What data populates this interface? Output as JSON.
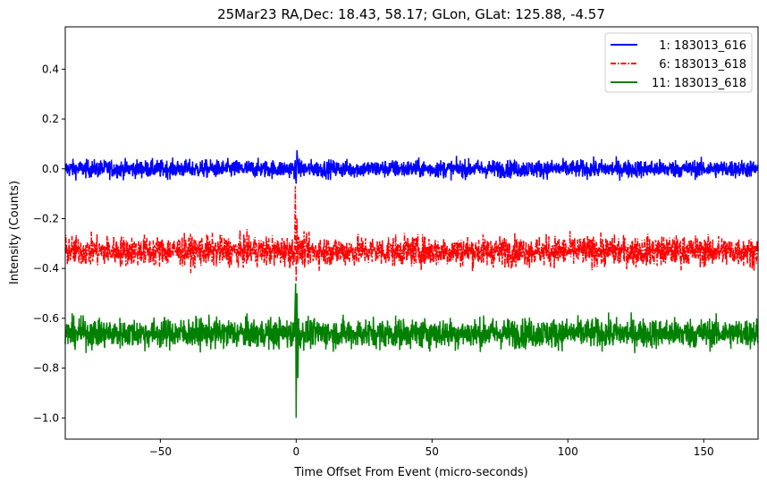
{
  "chart_data": {
    "type": "line",
    "title": "25Mar23 RA,Dec:   18.43,  58.17; GLon, GLat:  125.88,  -4.57",
    "xlabel": "Time Offset From Event (micro-seconds)",
    "ylabel": "Intensity (Counts)",
    "xlim": [
      -85,
      170
    ],
    "ylim": [
      -1.085,
      0.57
    ],
    "xticks": [
      -50,
      0,
      50,
      100,
      150
    ],
    "xtick_labels": [
      "−50",
      "0",
      "50",
      "100",
      "150"
    ],
    "yticks": [
      0.4,
      0.2,
      0.0,
      -0.2,
      -0.4,
      -0.6,
      -0.8,
      -1.0
    ],
    "ytick_labels": [
      "0.4",
      "0.2",
      "0.0",
      "−0.2",
      "−0.4",
      "−0.6",
      "−0.8",
      "−1.0"
    ],
    "grid": false,
    "legend_position": "top-right",
    "series": [
      {
        "name": "1: 183013_616",
        "color": "#0000ff",
        "style": "solid",
        "baseline": 0.0,
        "noise_amplitude": 0.018,
        "event_points": [
          [
            -0.3,
            -0.02
          ],
          [
            0,
            -0.06
          ],
          [
            0.3,
            0.075
          ],
          [
            0.6,
            0.02
          ]
        ]
      },
      {
        "name": "6: 183013_618",
        "color": "#ff0000",
        "style": "dashdot",
        "baseline": -0.33,
        "noise_amplitude": 0.03,
        "event_points": [
          [
            -0.5,
            -0.25
          ],
          [
            -0.3,
            -0.07
          ],
          [
            0,
            -0.45
          ],
          [
            0.3,
            -0.2
          ],
          [
            0.6,
            -0.38
          ]
        ]
      },
      {
        "name": "11: 183013_618",
        "color": "#008000",
        "style": "solid",
        "baseline": -0.66,
        "noise_amplitude": 0.03,
        "event_points": [
          [
            -0.5,
            -0.6
          ],
          [
            -0.2,
            -0.46
          ],
          [
            0,
            -1.0
          ],
          [
            0.3,
            -0.5
          ],
          [
            0.6,
            -0.84
          ],
          [
            0.9,
            -0.6
          ]
        ]
      }
    ]
  }
}
